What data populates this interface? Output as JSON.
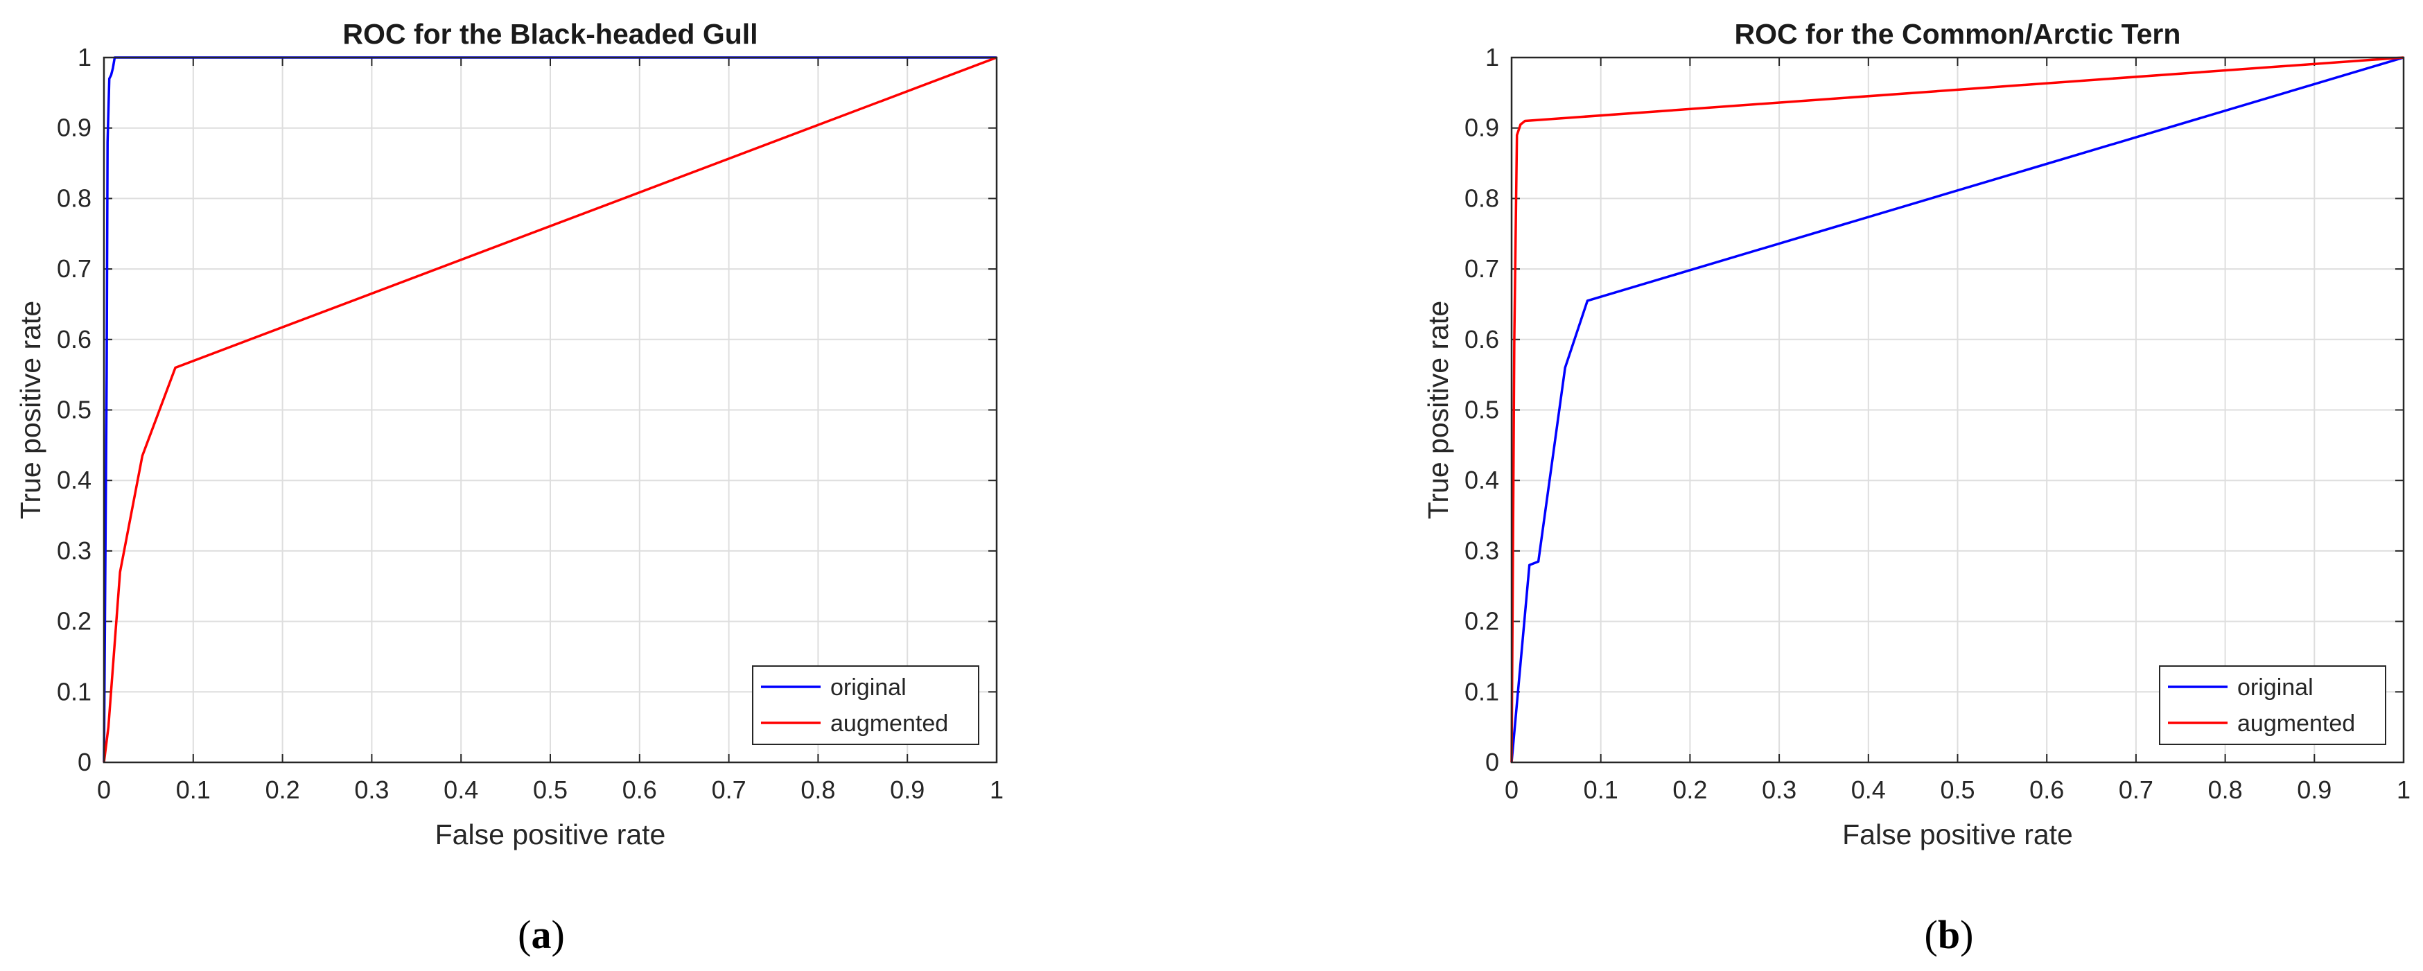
{
  "chart_data": [
    {
      "type": "line",
      "title": "ROC for the Black-headed Gull",
      "xlabel": "False positive rate",
      "ylabel": "True positive rate",
      "xlim": [
        0,
        1
      ],
      "ylim": [
        0,
        1
      ],
      "xticks": [
        "0",
        "0.1",
        "0.2",
        "0.3",
        "0.4",
        "0.5",
        "0.6",
        "0.7",
        "0.8",
        "0.9",
        "1"
      ],
      "yticks": [
        "0",
        "0.1",
        "0.2",
        "0.3",
        "0.4",
        "0.5",
        "0.6",
        "0.7",
        "0.8",
        "0.9",
        "1"
      ],
      "grid": true,
      "legend_position": "bottom-right",
      "caption": "(a)",
      "series": [
        {
          "name": "original",
          "color": "#0000ff",
          "x": [
            0,
            0.003,
            0.004,
            0.006,
            0.008,
            0.01,
            0.012,
            1
          ],
          "y": [
            0,
            0.55,
            0.88,
            0.97,
            0.975,
            0.985,
            1,
            1
          ]
        },
        {
          "name": "augmented",
          "color": "#ff0000",
          "x": [
            0,
            0.005,
            0.018,
            0.043,
            0.08,
            1
          ],
          "y": [
            0,
            0.05,
            0.27,
            0.435,
            0.56,
            1
          ]
        }
      ]
    },
    {
      "type": "line",
      "title": "ROC for the Common/Arctic Tern",
      "xlabel": "False positive rate",
      "ylabel": "True positive rate",
      "xlim": [
        0,
        1
      ],
      "ylim": [
        0,
        1
      ],
      "xticks": [
        "0",
        "0.1",
        "0.2",
        "0.3",
        "0.4",
        "0.5",
        "0.6",
        "0.7",
        "0.8",
        "0.9",
        "1"
      ],
      "yticks": [
        "0",
        "0.1",
        "0.2",
        "0.3",
        "0.4",
        "0.5",
        "0.6",
        "0.7",
        "0.8",
        "0.9",
        "1"
      ],
      "grid": true,
      "legend_position": "bottom-right",
      "caption": "(b)",
      "series": [
        {
          "name": "original",
          "color": "#0000ff",
          "x": [
            0,
            0.02,
            0.03,
            0.06,
            0.085,
            1
          ],
          "y": [
            0,
            0.28,
            0.285,
            0.56,
            0.655,
            1
          ]
        },
        {
          "name": "augmented",
          "color": "#ff0000",
          "x": [
            0,
            0.003,
            0.006,
            0.01,
            0.015,
            1
          ],
          "y": [
            0,
            0.6,
            0.89,
            0.905,
            0.91,
            1
          ]
        }
      ]
    }
  ]
}
